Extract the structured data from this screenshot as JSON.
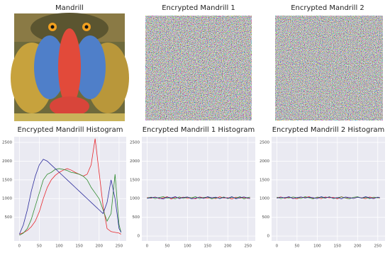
{
  "images": [
    {
      "title": "Mandrill"
    },
    {
      "title": "Encrypted Mandrill 1"
    },
    {
      "title": "Encrypted Mandrill 2"
    }
  ],
  "chart_data": [
    {
      "type": "line",
      "title": "Encrypted Mandrill Histogram",
      "x": [
        0,
        10,
        20,
        30,
        40,
        50,
        60,
        70,
        80,
        90,
        100,
        110,
        120,
        130,
        140,
        150,
        160,
        170,
        180,
        190,
        200,
        210,
        220,
        230,
        240,
        250,
        255
      ],
      "series": [
        {
          "color": "#e8262b",
          "values": [
            50,
            90,
            150,
            250,
            400,
            650,
            1000,
            1300,
            1500,
            1620,
            1700,
            1760,
            1800,
            1760,
            1700,
            1650,
            1600,
            1650,
            1900,
            2600,
            1700,
            800,
            200,
            120,
            100,
            80,
            50
          ]
        },
        {
          "color": "#2e8b2e",
          "values": [
            20,
            80,
            200,
            450,
            800,
            1150,
            1500,
            1650,
            1700,
            1780,
            1800,
            1780,
            1750,
            1700,
            1680,
            1650,
            1600,
            1500,
            1300,
            1150,
            1000,
            700,
            400,
            600,
            1650,
            300,
            100
          ]
        },
        {
          "color": "#2b2b9b",
          "values": [
            50,
            300,
            700,
            1200,
            1600,
            1900,
            2050,
            2000,
            1900,
            1800,
            1700,
            1600,
            1500,
            1400,
            1300,
            1200,
            1100,
            1000,
            900,
            800,
            700,
            600,
            900,
            1500,
            1000,
            200,
            100
          ]
        }
      ],
      "xlim": [
        -13,
        268
      ],
      "ylim": [
        -130,
        2650
      ],
      "xticks": [
        0,
        50,
        100,
        150,
        200,
        250
      ],
      "yticks": [
        500,
        1000,
        1500,
        2000,
        2500
      ]
    },
    {
      "type": "line",
      "title": "Encrypted Mandrill 1 Histogram",
      "x": [
        0,
        10,
        20,
        30,
        40,
        50,
        60,
        70,
        80,
        90,
        100,
        110,
        120,
        130,
        140,
        150,
        160,
        170,
        180,
        190,
        200,
        210,
        220,
        230,
        240,
        250,
        255
      ],
      "series": [
        {
          "color": "#e8262b",
          "values": [
            1030,
            1010,
            1045,
            1000,
            1020,
            1050,
            990,
            1035,
            1015,
            1040,
            1005,
            1025,
            995,
            1045,
            1020,
            1010,
            1030,
            1000,
            1050,
            1015,
            1025,
            990,
            1040,
            1010,
            1030,
            1005,
            1020
          ]
        },
        {
          "color": "#2e8b2e",
          "values": [
            1015,
            1040,
            1000,
            1030,
            1050,
            1010,
            1025,
            995,
            1045,
            1005,
            1035,
            1020,
            1050,
            1000,
            1030,
            1040,
            995,
            1025,
            1010,
            1045,
            1000,
            1035,
            1015,
            1050,
            995,
            1030,
            1040
          ]
        },
        {
          "color": "#2b2b9b",
          "values": [
            1005,
            1025,
            1035,
            1015,
            990,
            1040,
            1020,
            1050,
            1000,
            1030,
            1045,
            995,
            1015,
            1035,
            1005,
            1050,
            1020,
            1040,
            1000,
            1030,
            1010,
            1050,
            995,
            1025,
            1045,
            1015,
            1000
          ]
        }
      ],
      "xlim": [
        -13,
        268
      ],
      "ylim": [
        -130,
        2650
      ],
      "xticks": [
        0,
        50,
        100,
        150,
        200,
        250
      ],
      "yticks": [
        0,
        500,
        1000,
        1500,
        2000,
        2500
      ]
    },
    {
      "type": "line",
      "title": "Encrypted Mandrill 2 Histogram",
      "x": [
        0,
        10,
        20,
        30,
        40,
        50,
        60,
        70,
        80,
        90,
        100,
        110,
        120,
        130,
        140,
        150,
        160,
        170,
        180,
        190,
        200,
        210,
        220,
        230,
        240,
        250,
        255
      ],
      "series": [
        {
          "color": "#e8262b",
          "values": [
            1020,
            1045,
            1005,
            1035,
            1015,
            995,
            1040,
            1025,
            1050,
            1010,
            1030,
            1000,
            1045,
            1020,
            1035,
            995,
            1050,
            1015,
            1030,
            1005,
            1040,
            1020,
            1000,
            1045,
            1015,
            1035,
            1010
          ]
        },
        {
          "color": "#2e8b2e",
          "values": [
            1040,
            1000,
            1030,
            1015,
            1045,
            1025,
            1005,
            1050,
            1020,
            995,
            1040,
            1030,
            1010,
            1050,
            1000,
            1025,
            1045,
            1015,
            995,
            1035,
            1050,
            1010,
            1030,
            1000,
            1040,
            1020,
            1030
          ]
        },
        {
          "color": "#2b2b9b",
          "values": [
            1010,
            1035,
            1020,
            1050,
            1000,
            1030,
            1045,
            1015,
            1035,
            1025,
            1000,
            1050,
            1020,
            1040,
            1010,
            1030,
            995,
            1045,
            1025,
            1005,
            1035,
            1015,
            1050,
            1020,
            1000,
            1040,
            1025
          ]
        }
      ],
      "xlim": [
        -13,
        268
      ],
      "ylim": [
        -130,
        2650
      ],
      "xticks": [
        0,
        50,
        100,
        150,
        200,
        250
      ],
      "yticks": [
        0,
        500,
        1000,
        1500,
        2000,
        2500
      ]
    }
  ]
}
